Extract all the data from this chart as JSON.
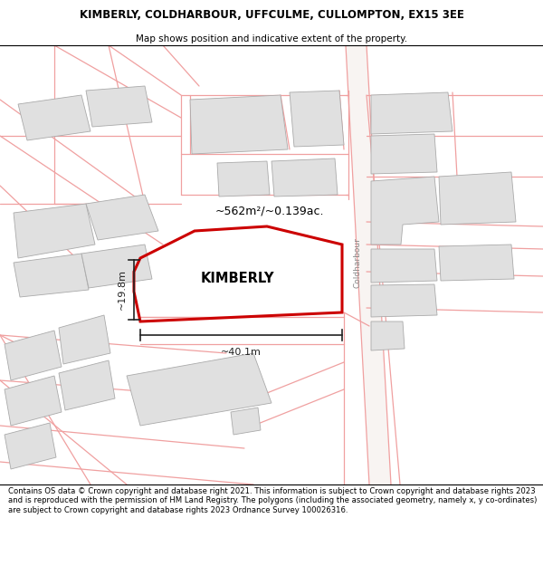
{
  "title_line1": "KIMBERLY, COLDHARBOUR, UFFCULME, CULLOMPTON, EX15 3EE",
  "title_line2": "Map shows position and indicative extent of the property.",
  "footer_text": "Contains OS data © Crown copyright and database right 2021. This information is subject to Crown copyright and database rights 2023 and is reproduced with the permission of HM Land Registry. The polygons (including the associated geometry, namely x, y co-ordinates) are subject to Crown copyright and database rights 2023 Ordnance Survey 100026316.",
  "map_bg": "#ffffff",
  "parcel_color": "#f0a0a0",
  "parcel_lw": 0.9,
  "building_fill": "#e0e0e0",
  "building_stroke": "#aaaaaa",
  "building_lw": 0.7,
  "prop_edge": "#cc0000",
  "prop_fill": "none",
  "prop_lw": 2.2,
  "coldharbour_label": "Coldharbour",
  "kimberly_label": "KIMBERLY",
  "area_label": "~562m²/~0.139ac.",
  "width_label": "~40.1m",
  "height_label": "~19.8m",
  "dim_color": "#222222",
  "title_fontsize": 8.5,
  "subtitle_fontsize": 7.5,
  "footer_fontsize": 6.1
}
